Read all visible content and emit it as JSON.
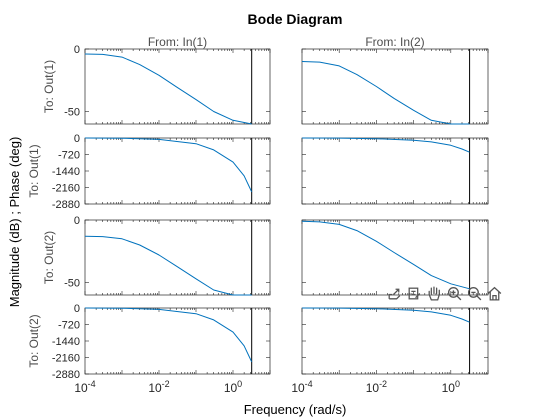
{
  "chart_data": {
    "type": "line",
    "title": "Bode Diagram",
    "xlabel": "Frequency  (rad/s)",
    "ylabel": "Magnitude (dB) ; Phase (deg)",
    "xscale": "log",
    "xlim": [
      0.0001,
      10
    ],
    "xtick_values": [
      0.0001,
      0.01,
      1
    ],
    "xtick_labels": [
      "10^-4",
      "10^-2",
      "10^0"
    ],
    "column_titles": [
      "From: In(1)",
      "From: In(2)"
    ],
    "row_labels": [
      "To: Out(1)",
      "To: Out(1)",
      "To: Out(2)",
      "To: Out(2)"
    ],
    "row_kind": [
      "magnitude",
      "phase",
      "magnitude",
      "phase"
    ],
    "magnitude_ylim": [
      -60,
      0
    ],
    "magnitude_ticks": [
      0,
      -50
    ],
    "phase_ylim": [
      -2880,
      0
    ],
    "phase_ticks": [
      0,
      -720,
      -1440,
      -2160,
      -2880
    ],
    "vline_x": 3.2,
    "line_color": "#0072bd",
    "grid": false,
    "panels": [
      {
        "row": 0,
        "col": 0,
        "x": [
          0.0001,
          0.0003,
          0.001,
          0.003,
          0.01,
          0.03,
          0.1,
          0.3,
          1,
          3.2
        ],
        "y": [
          -4,
          -4.3,
          -6.5,
          -12.5,
          -21,
          -30.5,
          -40.5,
          -50,
          -57,
          -60
        ]
      },
      {
        "row": 0,
        "col": 1,
        "x": [
          0.0001,
          0.0003,
          0.001,
          0.003,
          0.01,
          0.03,
          0.1,
          0.3,
          1,
          3.2
        ],
        "y": [
          -10,
          -10.5,
          -13.5,
          -20.5,
          -30,
          -39.5,
          -49,
          -57,
          -63,
          -65
        ]
      },
      {
        "row": 1,
        "col": 0,
        "x": [
          0.0001,
          0.001,
          0.01,
          0.1,
          0.3,
          1,
          2,
          3.2
        ],
        "y": [
          0,
          -10,
          -60,
          -250,
          -520,
          -1050,
          -1650,
          -2350
        ]
      },
      {
        "row": 1,
        "col": 1,
        "x": [
          0.0001,
          0.001,
          0.01,
          0.1,
          0.3,
          1,
          2,
          3.2
        ],
        "y": [
          0,
          -5,
          -30,
          -100,
          -170,
          -320,
          -480,
          -620
        ]
      },
      {
        "row": 2,
        "col": 0,
        "x": [
          0.0001,
          0.0003,
          0.001,
          0.003,
          0.01,
          0.03,
          0.1,
          0.3,
          1,
          3.2
        ],
        "y": [
          -13,
          -13.3,
          -15,
          -20,
          -28,
          -37,
          -47,
          -56,
          -63,
          -67
        ]
      },
      {
        "row": 2,
        "col": 1,
        "x": [
          0.0001,
          0.0003,
          0.001,
          0.003,
          0.01,
          0.03,
          0.1,
          0.3,
          1,
          3.2
        ],
        "y": [
          -1,
          -1.5,
          -3.5,
          -8.5,
          -17,
          -26,
          -35.5,
          -44.5,
          -51,
          -55
        ]
      },
      {
        "row": 3,
        "col": 0,
        "x": [
          0.0001,
          0.001,
          0.01,
          0.1,
          0.3,
          1,
          2,
          3.2
        ],
        "y": [
          0,
          -10,
          -60,
          -250,
          -520,
          -1050,
          -1650,
          -2350
        ]
      },
      {
        "row": 3,
        "col": 1,
        "x": [
          0.0001,
          0.001,
          0.01,
          0.1,
          0.3,
          1,
          2,
          3.2
        ],
        "y": [
          0,
          -5,
          -30,
          -100,
          -170,
          -320,
          -480,
          -620
        ]
      }
    ]
  },
  "toolbar": {
    "icons": [
      "export-icon",
      "brush-icon",
      "pan-icon",
      "zoom-in-icon",
      "zoom-out-icon",
      "home-icon"
    ]
  }
}
